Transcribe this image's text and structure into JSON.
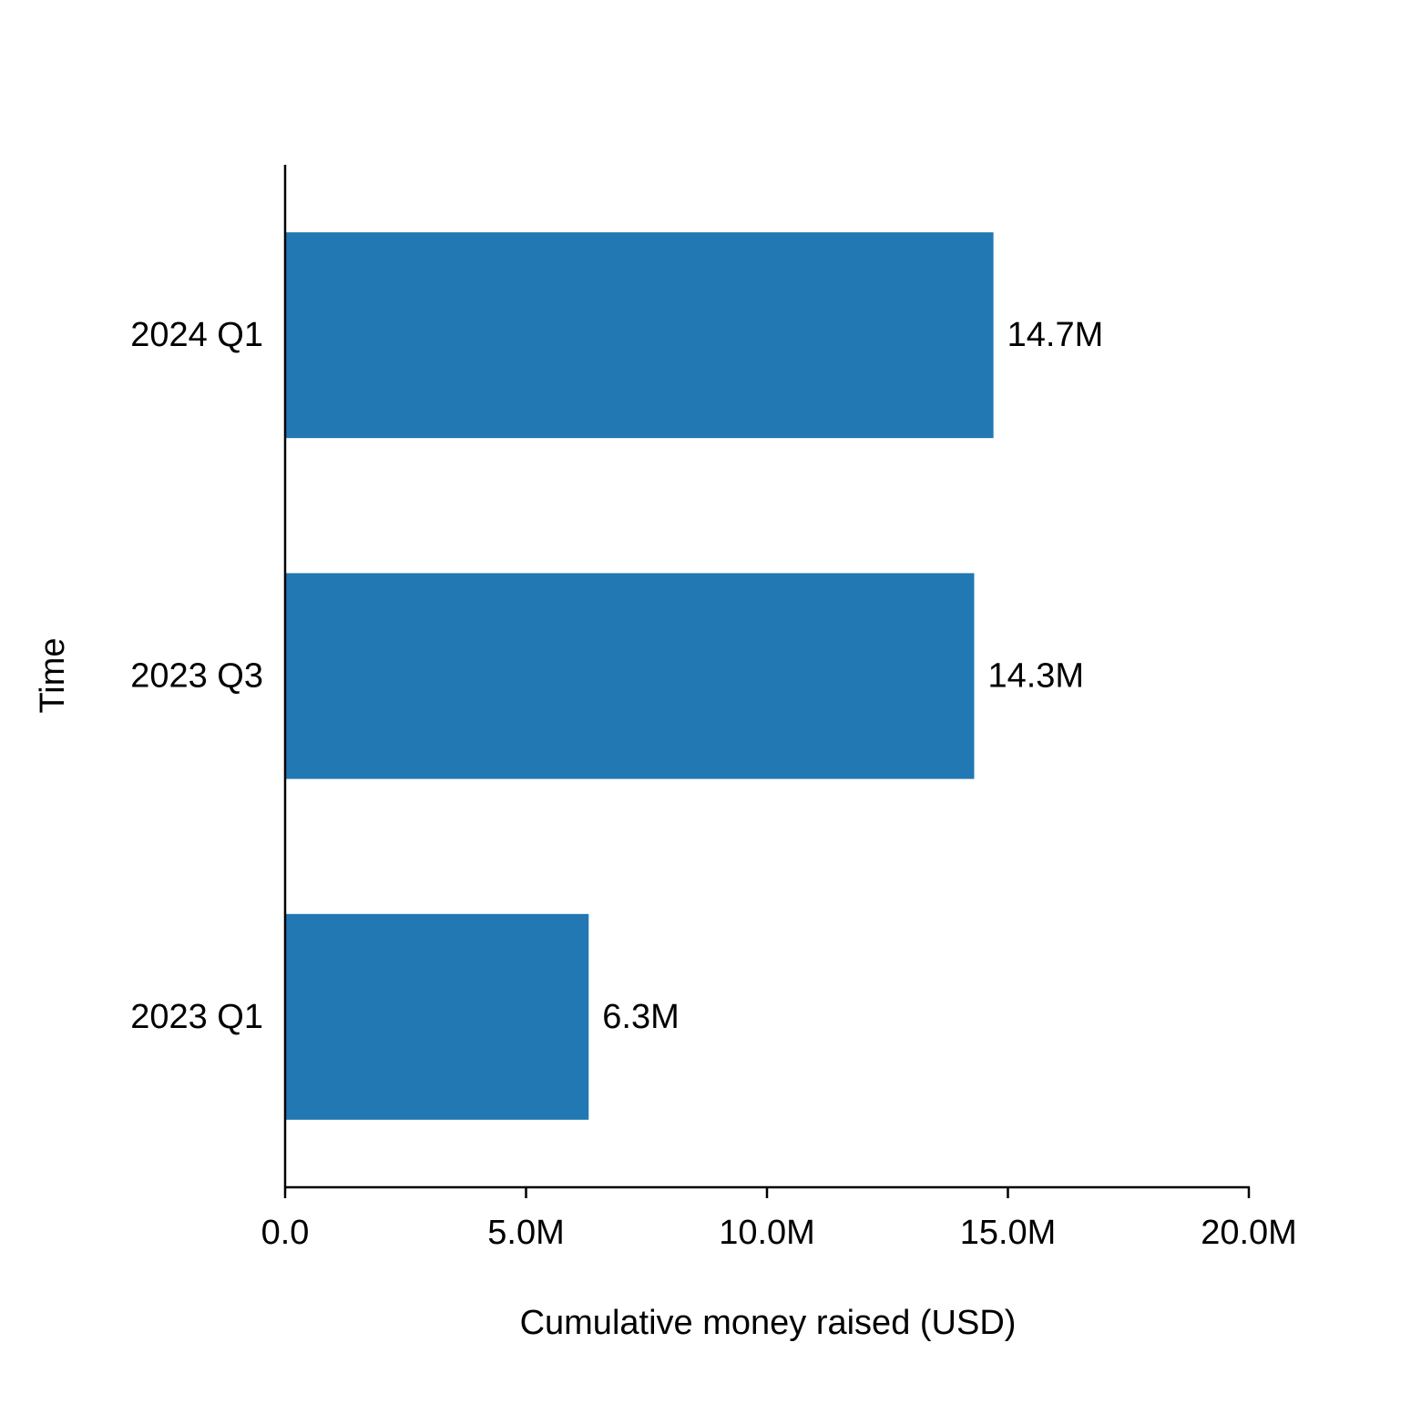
{
  "chart_data": {
    "type": "bar",
    "orientation": "horizontal",
    "categories": [
      "2023 Q1",
      "2023 Q3",
      "2024 Q1"
    ],
    "values": [
      6300000,
      14300000,
      14700000
    ],
    "value_labels": [
      "6.3M",
      "14.3M",
      "14.7M"
    ],
    "title": "",
    "xlabel": "Cumulative money raised (USD)",
    "ylabel": "Time",
    "xlim": [
      0,
      20000000
    ],
    "xticks": [
      0,
      5000000,
      10000000,
      15000000,
      20000000
    ],
    "xtick_labels": [
      "0.0",
      "5.0M",
      "10.0M",
      "15.0M",
      "20.0M"
    ],
    "grid": false,
    "bar_color": "#2178b2"
  }
}
